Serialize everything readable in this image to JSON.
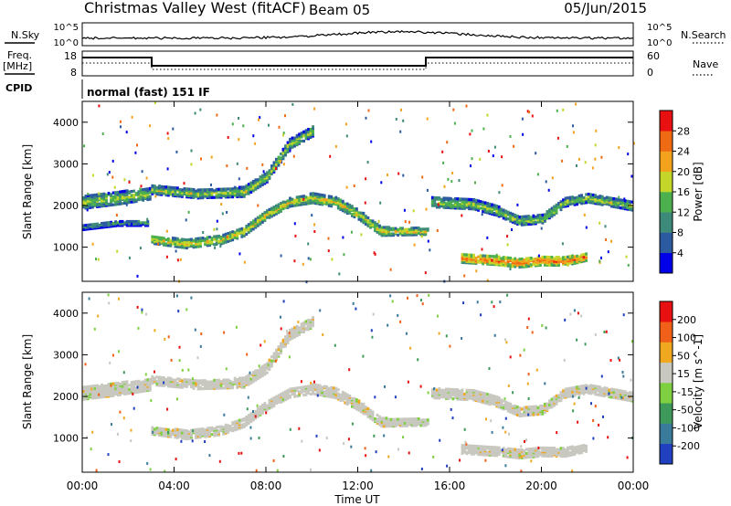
{
  "header": {
    "station": "Christmas Valley West (fitACF)",
    "beam": "Beam 05",
    "date": "05/Jun/2015"
  },
  "strips": {
    "nsky_label": "N.Sky",
    "nsearch_label": "N.Search",
    "nsky_ticks": [
      "10^5",
      "10^0"
    ],
    "freq_label_1": "Freq.",
    "freq_label_2": "[MHz]",
    "freq_ticks": [
      "18",
      "8"
    ],
    "nave_label": "Nave",
    "nave_ticks": [
      "60",
      "0"
    ],
    "cpid_label": "CPID",
    "cpid_text": "normal (fast) 151 IF"
  },
  "x_axis": {
    "title": "Time UT",
    "ticks": [
      "00:00",
      "04:00",
      "08:00",
      "12:00",
      "16:00",
      "20:00",
      "00:00"
    ]
  },
  "chart_data": [
    {
      "type": "heatmap",
      "title": "Power",
      "xlabel": "Time UT",
      "ylabel": "Slant Range [km]",
      "xlim": [
        0,
        24
      ],
      "ylim": [
        180,
        4500
      ],
      "y_ticks": [
        1000,
        2000,
        3000,
        4000
      ],
      "colorbar": {
        "label": "Power [dB]",
        "ticks": [
          "28",
          "24",
          "20",
          "16",
          "12",
          "8",
          "4"
        ],
        "colors": [
          "#0000e8",
          "#2c5aa0",
          "#3e8a7a",
          "#4cb04e",
          "#c4d62a",
          "#f2a21c",
          "#f06a14",
          "#e81010"
        ]
      },
      "series": [
        {
          "kind": "band",
          "points": [
            [
              0,
              2100,
              300
            ],
            [
              1.5,
              2200,
              300
            ],
            [
              2.9,
              2300,
              260
            ],
            [
              3.0,
              2400,
              200
            ],
            [
              5,
              2300,
              200
            ],
            [
              7,
              2350,
              230
            ],
            [
              8,
              2700,
              230
            ],
            [
              9,
              3500,
              230
            ],
            [
              10,
              3800,
              230
            ]
          ],
          "level": 0.55
        },
        {
          "kind": "band",
          "points": [
            [
              0,
              1500,
              120
            ],
            [
              1.5,
              1600,
              120
            ],
            [
              2.9,
              1600,
              120
            ]
          ],
          "level": 0.35
        },
        {
          "kind": "band",
          "points": [
            [
              3.0,
              1200,
              180
            ],
            [
              4.5,
              1100,
              200
            ],
            [
              6,
              1200,
              200
            ],
            [
              7,
              1400,
              220
            ],
            [
              8,
              1800,
              200
            ],
            [
              9,
              2100,
              200
            ],
            [
              10,
              2200,
              230
            ],
            [
              11,
              2100,
              230
            ],
            [
              12,
              1800,
              230
            ],
            [
              13,
              1400,
              200
            ],
            [
              15,
              1400,
              150
            ]
          ],
          "level": 0.65
        },
        {
          "kind": "band",
          "points": [
            [
              15.2,
              2100,
              230
            ],
            [
              17,
              2050,
              230
            ],
            [
              18,
              1900,
              230
            ],
            [
              19,
              1650,
              200
            ],
            [
              20,
              1700,
              200
            ],
            [
              21,
              2100,
              200
            ],
            [
              22,
              2200,
              200
            ],
            [
              24,
              2000,
              200
            ]
          ],
          "level": 0.55
        },
        {
          "kind": "band",
          "points": [
            [
              16.5,
              750,
              200
            ],
            [
              18,
              700,
              200
            ],
            [
              19,
              650,
              220
            ],
            [
              20,
              700,
              220
            ],
            [
              21,
              680,
              200
            ],
            [
              22,
              800,
              180
            ]
          ],
          "level": 0.85
        }
      ]
    },
    {
      "type": "heatmap",
      "title": "Velocity",
      "xlabel": "Time UT",
      "ylabel": "Slant Range [km]",
      "xlim": [
        0,
        24
      ],
      "ylim": [
        180,
        4500
      ],
      "y_ticks": [
        1000,
        2000,
        3000,
        4000
      ],
      "colorbar": {
        "label": "Velocity [m s^-1]",
        "ticks": [
          "200",
          "100",
          "50",
          "15",
          "-15",
          "-50",
          "-100",
          "-200"
        ],
        "colors": [
          "#2040c0",
          "#3a7a9a",
          "#3e9a5a",
          "#7ed040",
          "#c8c8c0",
          "#f0a820",
          "#f06018",
          "#e81010"
        ]
      },
      "series": [
        {
          "kind": "band",
          "points": [
            [
              0,
              2100,
              300
            ],
            [
              1.5,
              2200,
              300
            ],
            [
              2.9,
              2300,
              260
            ],
            [
              3.0,
              2400,
              200
            ],
            [
              5,
              2300,
              200
            ],
            [
              7,
              2350,
              230
            ],
            [
              8,
              2700,
              230
            ],
            [
              9,
              3500,
              230
            ],
            [
              10,
              3800,
              230
            ]
          ],
          "level": 0.45
        },
        {
          "kind": "band",
          "points": [
            [
              3.0,
              1200,
              180
            ],
            [
              4.5,
              1100,
              200
            ],
            [
              6,
              1200,
              200
            ],
            [
              7,
              1400,
              220
            ],
            [
              8,
              1800,
              200
            ],
            [
              9,
              2100,
              200
            ],
            [
              10,
              2200,
              230
            ],
            [
              11,
              2100,
              230
            ],
            [
              12,
              1800,
              230
            ],
            [
              13,
              1400,
              200
            ],
            [
              15,
              1400,
              150
            ]
          ],
          "level": 0.45
        },
        {
          "kind": "band",
          "points": [
            [
              15.2,
              2100,
              230
            ],
            [
              17,
              2050,
              230
            ],
            [
              18,
              1900,
              230
            ],
            [
              19,
              1650,
              200
            ],
            [
              20,
              1700,
              200
            ],
            [
              21,
              2100,
              200
            ],
            [
              22,
              2200,
              200
            ],
            [
              24,
              2000,
              200
            ]
          ],
          "level": 0.45
        },
        {
          "kind": "band",
          "points": [
            [
              16.5,
              750,
              200
            ],
            [
              18,
              700,
              200
            ],
            [
              19,
              650,
              220
            ],
            [
              20,
              700,
              220
            ],
            [
              21,
              680,
              200
            ],
            [
              22,
              800,
              180
            ]
          ],
          "level": 0.45
        }
      ]
    }
  ]
}
